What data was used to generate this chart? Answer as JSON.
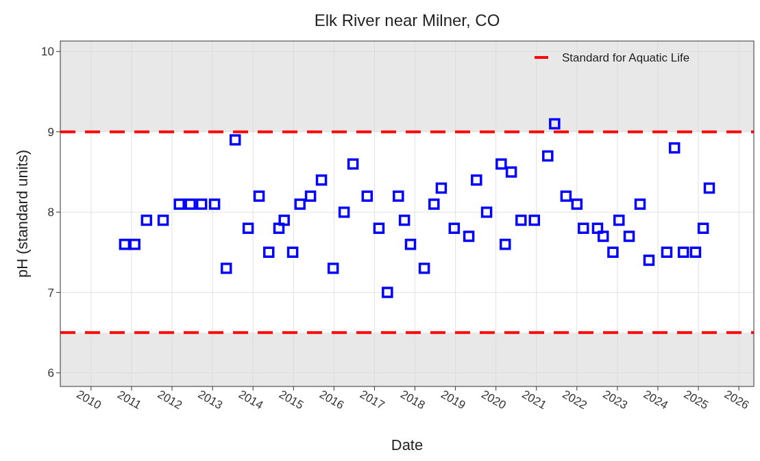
{
  "chart_data": {
    "type": "scatter",
    "title": "Elk River near Milner, CO",
    "xlabel": "Date",
    "ylabel": "pH (standard units)",
    "x": [
      2010.83,
      2011.08,
      2011.37,
      2011.78,
      2012.18,
      2012.45,
      2012.73,
      2013.05,
      2013.34,
      2013.56,
      2013.88,
      2014.15,
      2014.39,
      2014.64,
      2014.77,
      2014.98,
      2015.16,
      2015.42,
      2015.69,
      2015.98,
      2016.25,
      2016.47,
      2016.82,
      2017.11,
      2017.32,
      2017.59,
      2017.74,
      2017.89,
      2018.23,
      2018.47,
      2018.65,
      2018.97,
      2019.33,
      2019.52,
      2019.77,
      2020.13,
      2020.23,
      2020.38,
      2020.62,
      2020.95,
      2021.28,
      2021.45,
      2021.73,
      2022.0,
      2022.16,
      2022.51,
      2022.65,
      2022.89,
      2023.04,
      2023.29,
      2023.56,
      2023.78,
      2024.22,
      2024.41,
      2024.63,
      2024.93,
      2025.12,
      2025.27
    ],
    "series": [
      {
        "color": "#0000ff",
        "values": [
          7.6,
          7.6,
          7.9,
          7.9,
          8.1,
          8.1,
          8.1,
          8.1,
          7.3,
          8.9,
          7.8,
          8.2,
          7.5,
          7.8,
          7.9,
          7.5,
          8.1,
          8.2,
          8.4,
          7.3,
          8.0,
          8.6,
          8.2,
          7.8,
          7.0,
          8.2,
          7.9,
          7.6,
          7.3,
          8.1,
          8.3,
          7.8,
          7.7,
          8.4,
          8.0,
          8.6,
          7.6,
          8.5,
          7.9,
          7.9,
          8.7,
          9.1,
          8.2,
          8.1,
          7.8,
          7.8,
          7.7,
          7.5,
          7.9,
          7.7,
          8.1,
          7.4,
          7.5,
          8.8,
          7.5,
          7.5,
          7.8,
          8.3
        ]
      }
    ],
    "xlim": [
      2009.24,
      2026.37
    ],
    "xticks": [
      2010,
      2011,
      2012,
      2013,
      2014,
      2015,
      2016,
      2017,
      2018,
      2019,
      2020,
      2021,
      2022,
      2023,
      2024,
      2025,
      2026
    ],
    "ylim": [
      5.83,
      10.13
    ],
    "yticks": [
      6,
      7,
      8,
      9,
      10
    ],
    "ref_lines": [
      {
        "axis": "y",
        "value": 9,
        "label": "Standard for Aquatic Life",
        "color": "#ff0000",
        "line_style": "dashed"
      },
      {
        "axis": "y",
        "value": 6.5,
        "color": "#ff0000",
        "line_style": "dashed"
      }
    ],
    "bands": [
      {
        "axis": "y",
        "from": 9,
        "to": 10.13,
        "color": "#e8e8e8"
      },
      {
        "axis": "y",
        "from": 5.83,
        "to": 6.5,
        "color": "#e8e8e8"
      }
    ],
    "grid": true,
    "legend": "top right",
    "marker": "square"
  }
}
